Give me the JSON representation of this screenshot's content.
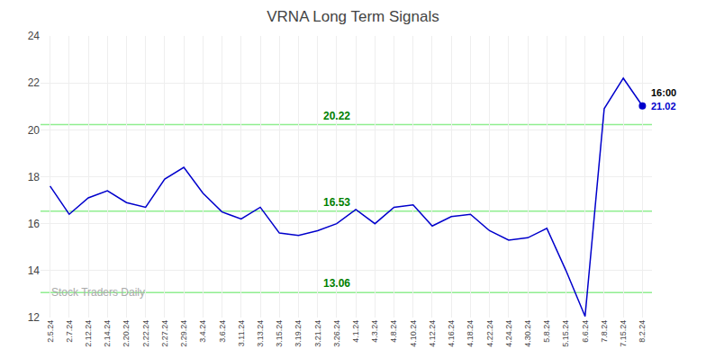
{
  "chart_data": {
    "type": "line",
    "title": "VRNA Long Term Signals",
    "watermark": "Stock Traders Daily",
    "categories": [
      "2.5.24",
      "2.7.24",
      "2.12.24",
      "2.14.24",
      "2.20.24",
      "2.22.24",
      "2.27.24",
      "2.29.24",
      "3.4.24",
      "3.6.24",
      "3.11.24",
      "3.13.24",
      "3.15.24",
      "3.19.24",
      "3.21.24",
      "3.26.24",
      "4.1.24",
      "4.3.24",
      "4.8.24",
      "4.10.24",
      "4.12.24",
      "4.16.24",
      "4.18.24",
      "4.22.24",
      "4.24.24",
      "4.30.24",
      "5.8.24",
      "5.15.24",
      "6.6.24",
      "7.8.24",
      "7.15.24",
      "8.2.24"
    ],
    "values": [
      17.6,
      16.4,
      17.1,
      17.4,
      16.9,
      16.7,
      17.9,
      18.4,
      17.3,
      16.5,
      16.2,
      16.7,
      15.6,
      15.5,
      15.7,
      16.0,
      16.6,
      16.0,
      16.7,
      16.8,
      15.9,
      16.3,
      16.4,
      15.7,
      15.3,
      15.4,
      15.8,
      14.0,
      12.05,
      20.9,
      22.2,
      21.02
    ],
    "color": "#0000cc",
    "last_point": {
      "category": "8.2.24",
      "value": 21.02,
      "color": "#0000cc",
      "labels": [
        "16:00",
        "21.02"
      ]
    },
    "hlines": {
      "values": [
        20.22,
        16.53,
        13.06
      ],
      "color": "#90ee90",
      "label_color": "#008000"
    },
    "ylim": [
      12,
      24
    ],
    "yticks": [
      12,
      14,
      16,
      18,
      20,
      22,
      24
    ],
    "grid": true
  }
}
